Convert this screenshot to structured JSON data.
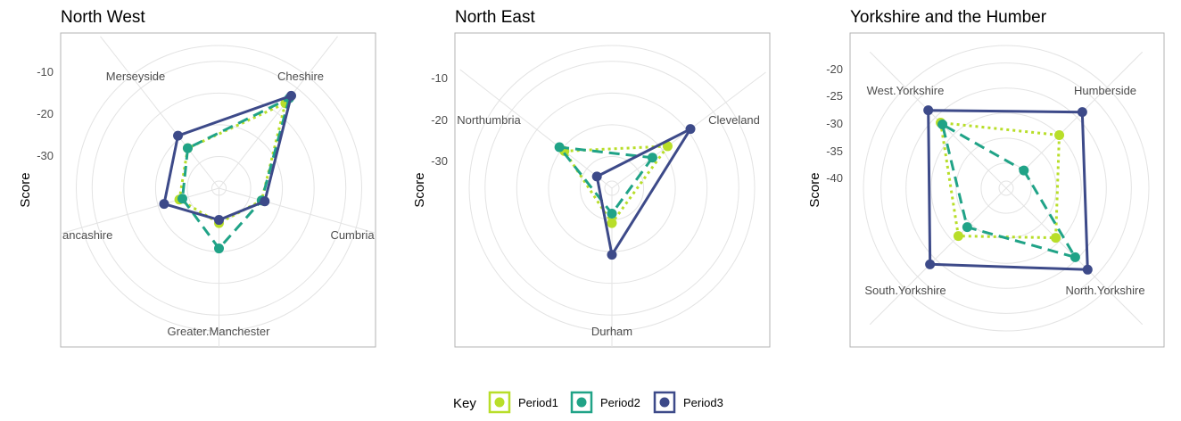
{
  "chart_data": [
    {
      "type": "radar",
      "title": "North West",
      "ylabel": "Score",
      "radial_ticks": [
        -10,
        -20,
        -30
      ],
      "axes": [
        "Cheshire",
        "Cumbria",
        "Greater.Manchester",
        "Lancashire",
        "Merseyside"
      ],
      "axes_display": [
        "Cheshire",
        "Cumbria",
        "Greater.Manchester",
        "ancashire",
        "Merseyside"
      ],
      "series": [
        {
          "name": "Period1",
          "values": [
            -16,
            -36,
            -39,
            -37,
            -34
          ]
        },
        {
          "name": "Period2",
          "values": [
            -14,
            -36,
            -31,
            -38,
            -34
          ]
        },
        {
          "name": "Period3",
          "values": [
            -13,
            -35,
            -40,
            -32,
            -29
          ]
        }
      ]
    },
    {
      "type": "radar",
      "title": "North East",
      "ylabel": "Score",
      "radial_ticks": [
        -10,
        -20,
        -30
      ],
      "axes": [
        "Cleveland",
        "Durham",
        "Northumbria"
      ],
      "series": [
        {
          "name": "Period1",
          "values": [
            -28,
            -39,
            -31
          ]
        },
        {
          "name": "Period2",
          "values": [
            -34,
            -42,
            -29
          ]
        },
        {
          "name": "Period3",
          "values": [
            -19,
            -29,
            -44
          ]
        }
      ]
    },
    {
      "type": "radar",
      "title": "Yorkshire and the Humber",
      "ylabel": "Score",
      "radial_ticks": [
        -20,
        -25,
        -30,
        -35,
        -40
      ],
      "axes": [
        "Humberside",
        "North.Yorkshire",
        "South.Yorkshire",
        "West.Yorkshire"
      ],
      "series": [
        {
          "name": "Period1",
          "values": [
            -30,
            -31,
            -31.5,
            -26.5
          ]
        },
        {
          "name": "Period2",
          "values": [
            -40,
            -25.5,
            -34,
            -27
          ]
        },
        {
          "name": "Period3",
          "values": [
            -23.5,
            -22,
            -23.5,
            -23
          ]
        }
      ]
    }
  ],
  "legend": {
    "title": "Key",
    "items": [
      {
        "label": "Period1",
        "color": "#b8de29",
        "dash": "dotted"
      },
      {
        "label": "Period2",
        "color": "#20a387",
        "dash": "dashed"
      },
      {
        "label": "Period3",
        "color": "#3d4a89",
        "dash": "solid"
      }
    ]
  }
}
